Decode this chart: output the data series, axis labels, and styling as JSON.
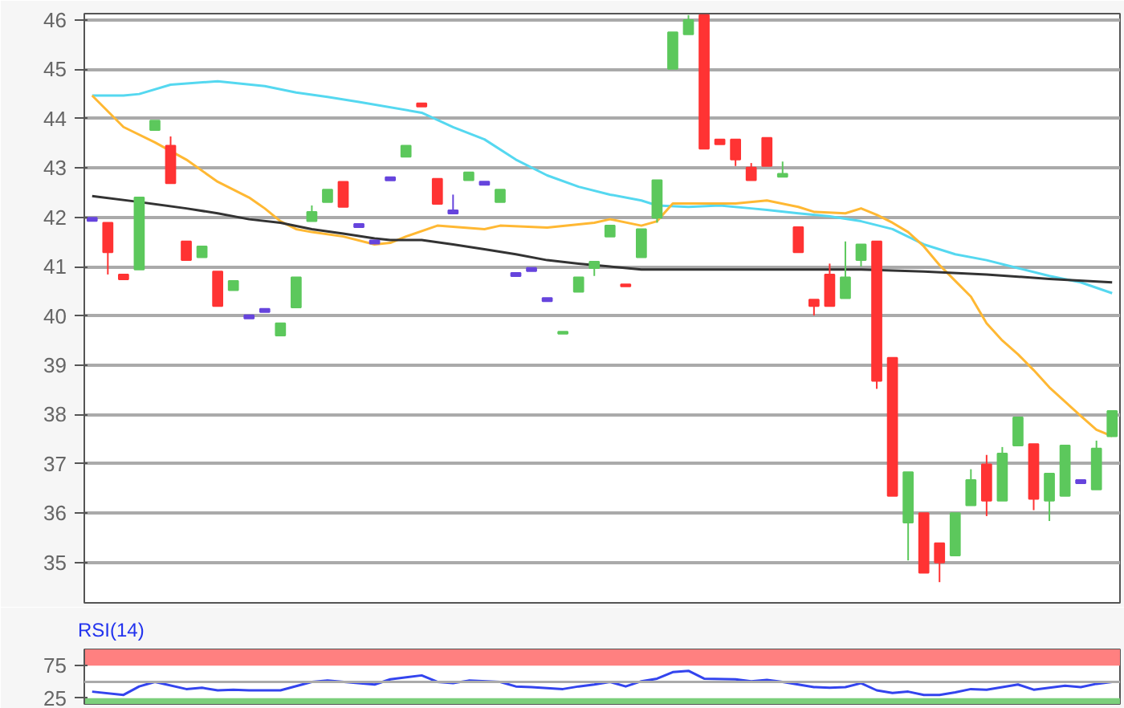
{
  "chart_data": [
    {
      "type": "candlestick",
      "categories": [
        null,
        null,
        null,
        null,
        null,
        null,
        null,
        null,
        null,
        null,
        null,
        null,
        null,
        null,
        null,
        null,
        null,
        null,
        null,
        null,
        null,
        null,
        null,
        null,
        null,
        null,
        null,
        null,
        null,
        null,
        null,
        null,
        null,
        null,
        null,
        null,
        null,
        null,
        null,
        null,
        null,
        null,
        null,
        null,
        null,
        null,
        null,
        null,
        null,
        null,
        null,
        null,
        null,
        null,
        null,
        null,
        null,
        null,
        null,
        null,
        null,
        null,
        null,
        null,
        null,
        null
      ],
      "ohlc": [
        [
          41.96,
          41.96,
          41.96,
          41.96
        ],
        [
          41.89,
          41.89,
          40.84,
          41.29
        ],
        [
          40.84,
          40.84,
          40.74,
          40.74
        ],
        [
          40.94,
          42.4,
          40.94,
          42.4
        ],
        [
          43.77,
          43.96,
          43.77,
          43.96
        ],
        [
          43.45,
          43.64,
          42.69,
          42.69
        ],
        [
          41.51,
          41.51,
          41.13,
          41.13
        ],
        [
          41.19,
          41.41,
          41.19,
          41.41
        ],
        [
          40.9,
          40.9,
          40.2,
          40.2
        ],
        [
          40.52,
          40.71,
          40.52,
          40.71
        ],
        [
          39.98,
          39.98,
          39.98,
          39.98
        ],
        [
          40.11,
          40.11,
          40.11,
          40.11
        ],
        [
          39.6,
          39.85,
          39.6,
          39.85
        ],
        [
          40.17,
          40.78,
          40.17,
          40.78
        ],
        [
          41.92,
          42.24,
          41.92,
          42.11
        ],
        [
          42.31,
          42.56,
          42.31,
          42.56
        ],
        [
          42.72,
          42.72,
          42.21,
          42.21
        ],
        [
          41.83,
          41.83,
          41.83,
          41.83
        ],
        [
          41.5,
          41.5,
          41.5,
          41.5
        ],
        [
          42.78,
          42.78,
          42.78,
          42.78
        ],
        [
          43.23,
          43.45,
          43.23,
          43.45
        ],
        [
          44.28,
          44.28,
          44.28,
          44.28
        ],
        [
          42.78,
          42.78,
          42.27,
          42.27
        ],
        [
          42.11,
          42.46,
          42.11,
          42.11
        ],
        [
          42.75,
          42.91,
          42.75,
          42.91
        ],
        [
          42.69,
          42.69,
          42.69,
          42.69
        ],
        [
          42.31,
          42.56,
          42.31,
          42.56
        ],
        [
          40.84,
          40.84,
          40.84,
          40.84
        ],
        [
          40.94,
          40.94,
          40.94,
          40.94
        ],
        [
          40.33,
          40.33,
          40.33,
          40.33
        ],
        [
          39.64,
          39.68,
          39.64,
          39.68
        ],
        [
          40.49,
          40.78,
          40.49,
          40.78
        ],
        [
          40.97,
          41.1,
          40.81,
          41.1
        ],
        [
          41.61,
          41.83,
          41.61,
          41.83
        ],
        [
          40.64,
          40.64,
          40.6,
          40.6
        ],
        [
          41.19,
          41.76,
          41.19,
          41.76
        ],
        [
          41.99,
          42.75,
          41.89,
          42.75
        ],
        [
          45.01,
          45.75,
          45.01,
          45.75
        ],
        [
          45.71,
          46.1,
          45.71,
          46.0
        ],
        [
          46.1,
          46.1,
          43.39,
          43.39
        ],
        [
          43.58,
          43.58,
          43.48,
          43.48
        ],
        [
          43.58,
          43.58,
          43.04,
          43.17
        ],
        [
          43.01,
          43.1,
          42.75,
          42.75
        ],
        [
          43.61,
          43.61,
          43.04,
          43.04
        ],
        [
          42.82,
          43.13,
          42.82,
          42.88
        ],
        [
          41.8,
          41.8,
          41.29,
          41.29
        ],
        [
          40.33,
          40.33,
          40.01,
          40.2
        ],
        [
          40.84,
          41.06,
          40.2,
          40.2
        ],
        [
          40.36,
          41.51,
          40.36,
          40.78
        ],
        [
          41.13,
          41.45,
          41.0,
          41.45
        ],
        [
          41.51,
          41.51,
          38.52,
          38.68
        ],
        [
          39.15,
          39.15,
          36.35,
          36.35
        ],
        [
          35.81,
          36.83,
          35.04,
          36.83
        ],
        [
          36.0,
          36.0,
          34.79,
          34.79
        ],
        [
          35.39,
          35.39,
          34.6,
          35.0
        ],
        [
          35.14,
          36.0,
          35.14,
          36.0
        ],
        [
          36.16,
          36.89,
          36.16,
          36.67
        ],
        [
          36.99,
          37.18,
          35.94,
          36.25
        ],
        [
          36.25,
          37.34,
          36.25,
          37.21
        ],
        [
          37.37,
          37.94,
          37.37,
          37.94
        ],
        [
          37.4,
          37.4,
          36.06,
          36.29
        ],
        [
          36.25,
          36.8,
          35.84,
          36.8
        ],
        [
          36.35,
          37.37,
          36.35,
          37.37
        ],
        [
          36.64,
          36.64,
          36.64,
          36.64
        ],
        [
          36.48,
          37.47,
          36.48,
          37.31
        ],
        [
          37.56,
          38.07,
          37.56,
          38.07
        ]
      ],
      "colors": [
        "#6644dd",
        "#ff3333",
        "#ff3333",
        "#5cc85c",
        "#5cc85c",
        "#ff3333",
        "#ff3333",
        "#5cc85c",
        "#ff3333",
        "#5cc85c",
        "#6644dd",
        "#6644dd",
        "#5cc85c",
        "#5cc85c",
        "#5cc85c",
        "#5cc85c",
        "#ff3333",
        "#6644dd",
        "#6644dd",
        "#6644dd",
        "#5cc85c",
        "#ff3333",
        "#ff3333",
        "#6644dd",
        "#5cc85c",
        "#6644dd",
        "#5cc85c",
        "#6644dd",
        "#6644dd",
        "#6644dd",
        "#5cc85c",
        "#5cc85c",
        "#5cc85c",
        "#5cc85c",
        "#ff3333",
        "#5cc85c",
        "#5cc85c",
        "#5cc85c",
        "#5cc85c",
        "#ff3333",
        "#ff3333",
        "#ff3333",
        "#ff3333",
        "#ff3333",
        "#5cc85c",
        "#ff3333",
        "#ff3333",
        "#ff3333",
        "#5cc85c",
        "#5cc85c",
        "#ff3333",
        "#ff3333",
        "#5cc85c",
        "#ff3333",
        "#ff3333",
        "#5cc85c",
        "#5cc85c",
        "#ff3333",
        "#5cc85c",
        "#5cc85c",
        "#ff3333",
        "#5cc85c",
        "#5cc85c",
        "#6644dd",
        "#5cc85c",
        "#5cc85c"
      ],
      "series": [
        {
          "type": "line",
          "color": "#55d8f0",
          "values": [
            44.47,
            null,
            44.47,
            44.5,
            null,
            44.69,
            null,
            null,
            44.76,
            null,
            null,
            44.66,
            null,
            44.53,
            null,
            44.44,
            null,
            44.34,
            null,
            null,
            null,
            44.12,
            null,
            43.83,
            null,
            43.58,
            null,
            43.17,
            null,
            42.85,
            null,
            42.62,
            null,
            42.46,
            null,
            42.34,
            42.24,
            null,
            42.21,
            null,
            42.24,
            null,
            42.18,
            42.15,
            null,
            42.08,
            null,
            42.02,
            null,
            41.92,
            null,
            41.76,
            null,
            41.45,
            null,
            41.25,
            null,
            41.13,
            null,
            40.97,
            null,
            40.81,
            null,
            40.68,
            null,
            40.46
          ]
        },
        {
          "type": "line",
          "color": "#ffb833",
          "values": [
            44.47,
            null,
            43.83,
            null,
            43.52,
            null,
            43.17,
            null,
            42.72,
            null,
            42.4,
            42.18,
            41.92,
            41.76,
            41.7,
            null,
            41.61,
            null,
            41.45,
            41.48,
            41.61,
            null,
            41.83,
            null,
            null,
            41.76,
            41.83,
            null,
            null,
            41.79,
            null,
            null,
            41.89,
            41.96,
            null,
            41.83,
            41.92,
            42.28,
            42.28,
            null,
            null,
            42.28,
            null,
            42.34,
            null,
            42.21,
            42.11,
            null,
            42.08,
            42.18,
            42.05,
            41.89,
            41.7,
            41.41,
            41.03,
            40.71,
            40.39,
            39.85,
            39.5,
            39.22,
            38.9,
            38.55,
            38.26,
            37.97,
            37.69,
            37.56
          ]
        },
        {
          "type": "line",
          "color": "#333333",
          "values": [
            42.43,
            null,
            null,
            42.31,
            null,
            null,
            42.18,
            null,
            42.08,
            null,
            41.96,
            null,
            41.89,
            null,
            41.76,
            null,
            41.67,
            null,
            41.57,
            41.54,
            null,
            41.54,
            null,
            41.45,
            null,
            41.35,
            null,
            41.25,
            null,
            41.13,
            null,
            41.06,
            null,
            41.0,
            null,
            40.94,
            null,
            40.94,
            null,
            null,
            null,
            null,
            40.94,
            null,
            null,
            40.94,
            null,
            null,
            null,
            40.94,
            null,
            null,
            null,
            40.9,
            null,
            null,
            null,
            40.84,
            null,
            null,
            null,
            40.75,
            null,
            null,
            null,
            40.68
          ]
        }
      ],
      "ylim": [
        34.18,
        46.13
      ],
      "yticks": [
        35,
        36,
        37,
        38,
        39,
        40,
        41,
        42,
        43,
        44,
        45,
        46
      ],
      "grid": "y",
      "tick_labels": "y"
    },
    {
      "type": "line",
      "title": "RSI(14)",
      "categories": [
        null,
        null,
        null,
        null,
        null,
        null,
        null,
        null,
        null,
        null,
        null,
        null,
        null,
        null,
        null,
        null,
        null,
        null,
        null,
        null,
        null,
        null,
        null,
        null,
        null,
        null,
        null,
        null,
        null,
        null,
        null,
        null,
        null,
        null,
        null,
        null,
        null,
        null,
        null,
        null,
        null,
        null,
        null,
        null,
        null,
        null,
        null,
        null,
        null,
        null,
        null,
        null,
        null,
        null,
        null,
        null,
        null,
        null,
        null,
        null,
        null,
        null,
        null,
        null,
        null,
        null
      ],
      "series": [
        {
          "color": "#3344ee",
          "values": [
            35,
            null,
            30,
            43,
            50,
            null,
            39,
            41,
            37,
            38,
            37,
            null,
            37,
            null,
            50,
            52,
            null,
            null,
            46,
            54,
            null,
            60,
            50,
            48,
            52,
            null,
            50,
            43,
            42,
            null,
            39,
            43,
            46,
            50,
            43,
            51,
            55,
            65,
            67,
            55,
            null,
            54,
            51,
            53,
            50,
            null,
            42,
            41,
            42,
            48,
            37,
            33,
            35,
            30,
            30,
            34,
            39,
            38,
            null,
            46,
            38,
            null,
            44,
            42,
            47,
            50
          ]
        }
      ],
      "ylim": [
        16,
        100
      ],
      "yticks": [
        25,
        75
      ],
      "tick_labels": "y",
      "bands": [
        {
          "axis": "y",
          "from": 75,
          "to": 100,
          "color": "#ff8080"
        },
        {
          "axis": "y",
          "from": 0,
          "to": 25,
          "color": "#7ccf7c"
        }
      ],
      "ref_lines": [
        {
          "axis": "y",
          "value": 50,
          "color": "#aaaaaa"
        }
      ]
    }
  ]
}
